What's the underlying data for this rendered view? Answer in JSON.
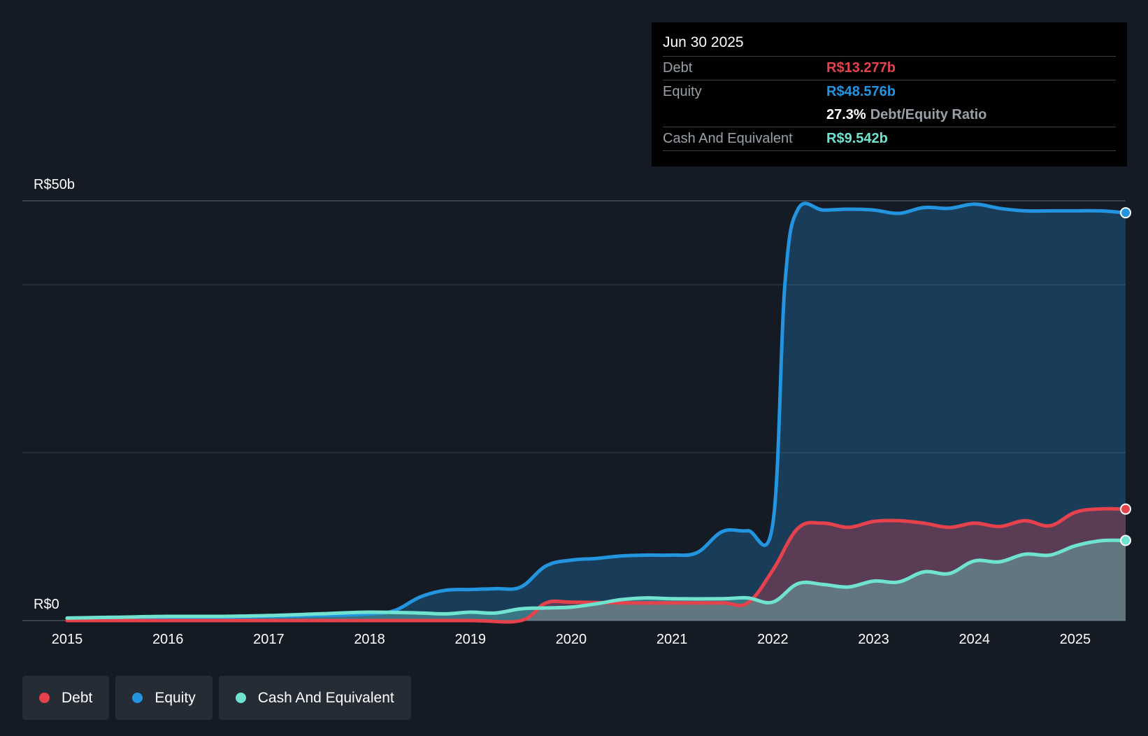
{
  "colors": {
    "debt": "#e5424d",
    "equity": "#2394df",
    "cash": "#6fe3d0",
    "background": "#151b24"
  },
  "tooltip": {
    "date": "Jun 30 2025",
    "debt_label": "Debt",
    "debt_value": "R$13.277b",
    "equity_label": "Equity",
    "equity_value": "R$48.576b",
    "ratio_value": "27.3%",
    "ratio_label": "Debt/Equity Ratio",
    "cash_label": "Cash And Equivalent",
    "cash_value": "R$9.542b"
  },
  "legend": {
    "debt": "Debt",
    "equity": "Equity",
    "cash": "Cash And Equivalent"
  },
  "chart_data": {
    "type": "area",
    "title": "",
    "xlabel": "",
    "ylabel": "",
    "ylim": [
      0,
      50
    ],
    "xlim": [
      2015,
      2025.5
    ],
    "y_tick_labels": [
      "R$50b",
      "R$0"
    ],
    "y_ticks": [
      50,
      0
    ],
    "gridlines": [
      50,
      40,
      20
    ],
    "x_ticks": [
      2015,
      2016,
      2017,
      2018,
      2019,
      2020,
      2021,
      2022,
      2023,
      2024,
      2025
    ],
    "x_tick_labels": [
      "2015",
      "2016",
      "2017",
      "2018",
      "2019",
      "2020",
      "2021",
      "2022",
      "2023",
      "2024",
      "2025"
    ],
    "series": [
      {
        "name": "Equity",
        "key": "equity",
        "points": [
          [
            2015,
            0.2
          ],
          [
            2015.5,
            0.3
          ],
          [
            2016,
            0.4
          ],
          [
            2016.5,
            0.4
          ],
          [
            2017,
            0.5
          ],
          [
            2017.5,
            0.6
          ],
          [
            2018,
            0.8
          ],
          [
            2018.25,
            1.2
          ],
          [
            2018.5,
            2.8
          ],
          [
            2018.75,
            3.6
          ],
          [
            2019,
            3.7
          ],
          [
            2019.25,
            3.8
          ],
          [
            2019.5,
            4.0
          ],
          [
            2019.75,
            6.5
          ],
          [
            2020,
            7.2
          ],
          [
            2020.25,
            7.4
          ],
          [
            2020.5,
            7.7
          ],
          [
            2020.75,
            7.8
          ],
          [
            2021,
            7.8
          ],
          [
            2021.25,
            8.1
          ],
          [
            2021.5,
            10.6
          ],
          [
            2021.75,
            10.7
          ],
          [
            2022,
            11.5
          ],
          [
            2022.12,
            40.0
          ],
          [
            2022.25,
            49.0
          ],
          [
            2022.5,
            48.9
          ],
          [
            2022.75,
            49.0
          ],
          [
            2023,
            48.9
          ],
          [
            2023.25,
            48.5
          ],
          [
            2023.5,
            49.2
          ],
          [
            2023.75,
            49.1
          ],
          [
            2024,
            49.6
          ],
          [
            2024.25,
            49.1
          ],
          [
            2024.5,
            48.8
          ],
          [
            2024.75,
            48.8
          ],
          [
            2025,
            48.8
          ],
          [
            2025.25,
            48.8
          ],
          [
            2025.5,
            48.576
          ]
        ]
      },
      {
        "name": "Debt",
        "key": "debt",
        "points": [
          [
            2015,
            0.0
          ],
          [
            2016,
            0.0
          ],
          [
            2017,
            0.0
          ],
          [
            2018,
            0.0
          ],
          [
            2019,
            0.0
          ],
          [
            2019.5,
            0.0
          ],
          [
            2019.75,
            2.1
          ],
          [
            2020,
            2.2
          ],
          [
            2020.5,
            2.1
          ],
          [
            2021,
            2.1
          ],
          [
            2021.5,
            2.1
          ],
          [
            2021.75,
            2.1
          ],
          [
            2022,
            6.0
          ],
          [
            2022.25,
            11.0
          ],
          [
            2022.5,
            11.6
          ],
          [
            2022.75,
            11.1
          ],
          [
            2023,
            11.8
          ],
          [
            2023.25,
            11.9
          ],
          [
            2023.5,
            11.6
          ],
          [
            2023.75,
            11.1
          ],
          [
            2024,
            11.6
          ],
          [
            2024.25,
            11.2
          ],
          [
            2024.5,
            11.9
          ],
          [
            2024.75,
            11.3
          ],
          [
            2025,
            12.9
          ],
          [
            2025.25,
            13.3
          ],
          [
            2025.5,
            13.277
          ]
        ]
      },
      {
        "name": "Cash And Equivalent",
        "key": "cash",
        "points": [
          [
            2015,
            0.3
          ],
          [
            2015.5,
            0.4
          ],
          [
            2016,
            0.5
          ],
          [
            2016.5,
            0.5
          ],
          [
            2017,
            0.6
          ],
          [
            2017.5,
            0.8
          ],
          [
            2018,
            1.0
          ],
          [
            2018.5,
            0.9
          ],
          [
            2018.75,
            0.8
          ],
          [
            2019,
            1.0
          ],
          [
            2019.25,
            0.9
          ],
          [
            2019.5,
            1.4
          ],
          [
            2019.75,
            1.5
          ],
          [
            2020,
            1.6
          ],
          [
            2020.25,
            2.0
          ],
          [
            2020.5,
            2.5
          ],
          [
            2020.75,
            2.7
          ],
          [
            2021,
            2.6
          ],
          [
            2021.5,
            2.6
          ],
          [
            2021.75,
            2.7
          ],
          [
            2022,
            2.2
          ],
          [
            2022.25,
            4.4
          ],
          [
            2022.5,
            4.3
          ],
          [
            2022.75,
            4.0
          ],
          [
            2023,
            4.7
          ],
          [
            2023.25,
            4.6
          ],
          [
            2023.5,
            5.8
          ],
          [
            2023.75,
            5.6
          ],
          [
            2024,
            7.1
          ],
          [
            2024.25,
            7.0
          ],
          [
            2024.5,
            7.9
          ],
          [
            2024.75,
            7.8
          ],
          [
            2025,
            8.9
          ],
          [
            2025.25,
            9.5
          ],
          [
            2025.5,
            9.542
          ]
        ]
      }
    ]
  }
}
